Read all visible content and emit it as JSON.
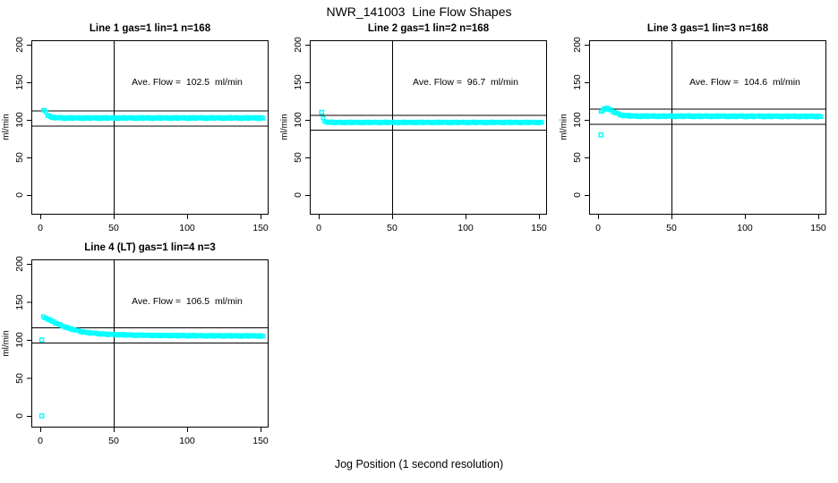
{
  "figure": {
    "title": "NWR_141003  Line Flow Shapes",
    "xlabel": "Jog Position (1 second resolution)",
    "ylabel": "ml/min",
    "point_color": "#00FFFF",
    "axis_color": "#000000",
    "background_color": "#FFFFFF"
  },
  "chart_data": [
    {
      "type": "scatter",
      "title": "Line 1 gas=1 lin=1 n=168",
      "ave_flow": 102.5,
      "ave_flow_label": "Ave. Flow =  102.5  ml/min",
      "ylabel": "ml/min",
      "x_ticks": [
        0,
        50,
        100,
        150
      ],
      "y_ticks": [
        0,
        50,
        100,
        150,
        200
      ],
      "xlim": [
        0,
        155
      ],
      "ylim": [
        0,
        205
      ],
      "grid": false,
      "vline_x": 50,
      "ref_lines": [
        112.5,
        92.5
      ],
      "series": {
        "name": "line1-flow",
        "x_start": 2,
        "x_end": 152,
        "x_step": 1,
        "trend": [
          [
            2,
            112
          ],
          [
            3,
            113
          ],
          [
            4,
            109.5
          ],
          [
            5,
            106.5
          ],
          [
            6,
            104.8
          ],
          [
            8,
            103.3
          ],
          [
            11,
            102.7
          ],
          [
            20,
            102.4
          ],
          [
            152,
            102.5
          ]
        ],
        "noise_pattern": [
          1.0,
          -0.7,
          0.4,
          -1.1,
          0.8,
          0.1,
          -0.5,
          1.1,
          -0.9,
          0.6,
          -0.2,
          0.7
        ],
        "outliers": []
      }
    },
    {
      "type": "scatter",
      "title": "Line 2 gas=1 lin=2 n=168",
      "ave_flow": 96.7,
      "ave_flow_label": "Ave. Flow =  96.7  ml/min",
      "ylabel": "ml/min",
      "x_ticks": [
        0,
        50,
        100,
        150
      ],
      "y_ticks": [
        0,
        50,
        100,
        150,
        200
      ],
      "xlim": [
        0,
        155
      ],
      "ylim": [
        0,
        205
      ],
      "grid": false,
      "vline_x": 50,
      "ref_lines": [
        106.7,
        86.7
      ],
      "series": {
        "name": "line2-flow",
        "x_start": 3,
        "x_end": 152,
        "x_step": 1,
        "trend": [
          [
            3,
            101.5
          ],
          [
            4,
            98.5
          ],
          [
            5,
            97.4
          ],
          [
            7,
            96.8
          ],
          [
            10,
            96.5
          ],
          [
            152,
            96.5
          ]
        ],
        "noise_pattern": [
          0.8,
          -0.6,
          0.3,
          -0.9,
          0.7,
          0.1,
          -0.4,
          0.9,
          -0.8,
          0.5,
          -0.2,
          0.6
        ],
        "outliers": [
          [
            2,
            110
          ]
        ]
      }
    },
    {
      "type": "scatter",
      "title": "Line 3 gas=1 lin=3 n=168",
      "ave_flow": 104.6,
      "ave_flow_label": "Ave. Flow =  104.6  ml/min",
      "ylabel": "ml/min",
      "x_ticks": [
        0,
        50,
        100,
        150
      ],
      "y_ticks": [
        0,
        50,
        100,
        150,
        200
      ],
      "xlim": [
        0,
        155
      ],
      "ylim": [
        0,
        205
      ],
      "grid": false,
      "vline_x": 50,
      "ref_lines": [
        114.6,
        94.6
      ],
      "series": {
        "name": "line3-flow",
        "x_start": 2,
        "x_end": 152,
        "x_step": 1,
        "trend": [
          [
            2,
            110
          ],
          [
            4,
            114.5
          ],
          [
            6,
            115.2
          ],
          [
            8,
            113.8
          ],
          [
            11,
            110
          ],
          [
            14,
            107.3
          ],
          [
            18,
            105.6
          ],
          [
            25,
            104.9
          ],
          [
            152,
            104.6
          ]
        ],
        "noise_pattern": [
          1.0,
          -0.7,
          0.4,
          -1.0,
          0.8,
          0.1,
          -0.5,
          1.0,
          -0.9,
          0.6,
          -0.2,
          0.7
        ],
        "outliers": [
          [
            2,
            80
          ]
        ]
      }
    },
    {
      "type": "scatter",
      "title": "Line 4 (LT) gas=1 lin=4 n=3",
      "ave_flow": 106.5,
      "ave_flow_label": "Ave. Flow =  106.5  ml/min",
      "ylabel": "ml/min",
      "x_ticks": [
        0,
        50,
        100,
        150
      ],
      "y_ticks": [
        0,
        50,
        100,
        150,
        200
      ],
      "xlim": [
        0,
        155
      ],
      "ylim": [
        0,
        205
      ],
      "grid": false,
      "vline_x": 50,
      "ref_lines": [
        116.5,
        96.5
      ],
      "series": {
        "name": "line4-flow",
        "x_start": 2,
        "x_end": 152,
        "x_step": 1,
        "trend": [
          [
            2,
            130
          ],
          [
            4,
            128.5
          ],
          [
            6,
            126.6
          ],
          [
            8,
            124.6
          ],
          [
            10,
            122.6
          ],
          [
            13,
            120
          ],
          [
            16,
            117.6
          ],
          [
            20,
            114.9
          ],
          [
            25,
            112.2
          ],
          [
            30,
            110.1
          ],
          [
            36,
            108.7
          ],
          [
            45,
            107.4
          ],
          [
            60,
            106.4
          ],
          [
            80,
            105.8
          ],
          [
            110,
            105.4
          ],
          [
            152,
            105.2
          ]
        ],
        "noise_pattern": [
          0.8,
          -0.6,
          0.3,
          -0.9,
          0.7,
          0.1,
          -0.4,
          0.9,
          -0.8,
          0.5,
          -0.2,
          0.6
        ],
        "outliers": [
          [
            1,
            100
          ],
          [
            1,
            0
          ]
        ]
      }
    }
  ]
}
